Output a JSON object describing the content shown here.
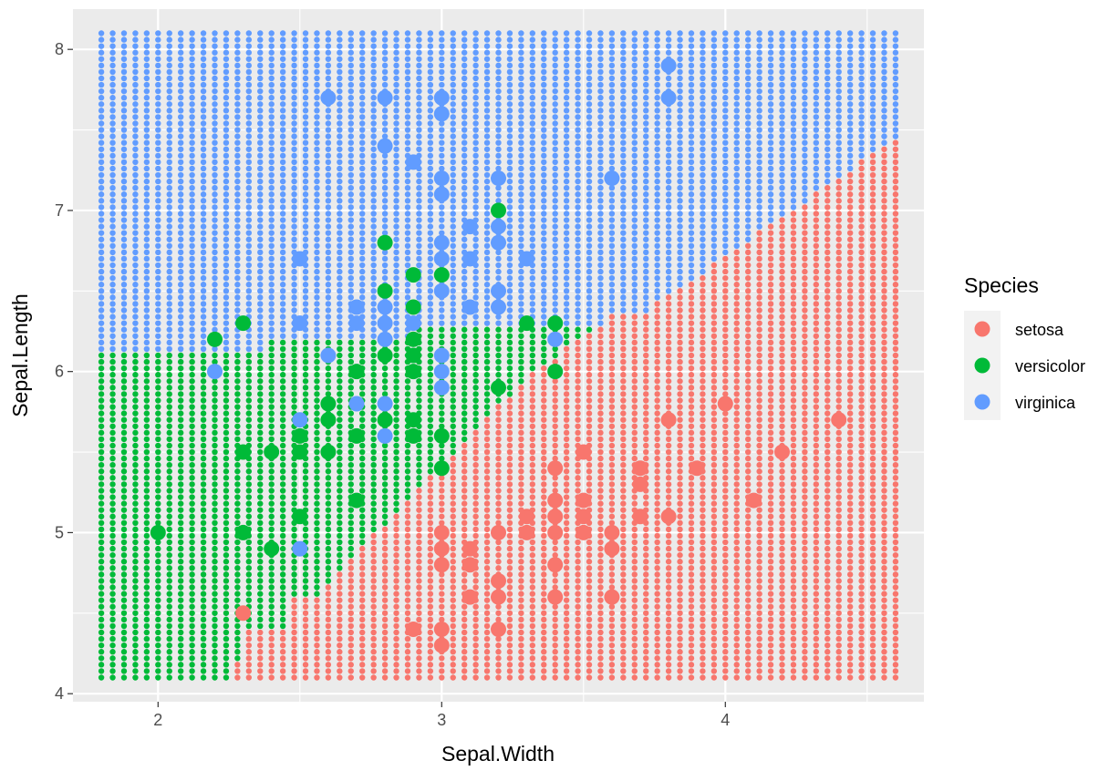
{
  "chart_data": {
    "type": "scatter",
    "xlabel": "Sepal.Width",
    "ylabel": "Sepal.Length",
    "xlim": [
      1.7,
      4.7
    ],
    "ylim": [
      3.95,
      8.25
    ],
    "x_ticks": [
      2,
      3,
      4
    ],
    "y_ticks": [
      4,
      5,
      6,
      7,
      8
    ],
    "grid": true,
    "legend": {
      "title": "Species",
      "placement": "right"
    },
    "colors": {
      "setosa": "#F8766D",
      "versicolor": "#00BA38",
      "virginica": "#619CFF"
    },
    "background": {
      "description_type": "decision-region grid",
      "x_range": [
        1.8,
        4.6
      ],
      "y_range": [
        4.1,
        8.1
      ],
      "x_step": 0.04,
      "y_step": 0.04
    },
    "series": [
      {
        "name": "setosa",
        "points": [
          [
            2.3,
            4.5
          ],
          [
            2.9,
            4.4
          ],
          [
            3.0,
            4.4
          ],
          [
            3.0,
            4.3
          ],
          [
            3.1,
            4.6
          ],
          [
            3.1,
            4.8
          ],
          [
            3.1,
            4.9
          ],
          [
            3.0,
            5.0
          ],
          [
            3.0,
            4.9
          ],
          [
            3.0,
            4.8
          ],
          [
            3.2,
            4.7
          ],
          [
            3.2,
            4.6
          ],
          [
            3.2,
            4.4
          ],
          [
            3.2,
            5.0
          ],
          [
            3.3,
            5.0
          ],
          [
            3.3,
            5.1
          ],
          [
            3.4,
            4.6
          ],
          [
            3.4,
            4.8
          ],
          [
            3.4,
            5.0
          ],
          [
            3.4,
            5.1
          ],
          [
            3.4,
            5.2
          ],
          [
            3.4,
            5.4
          ],
          [
            3.5,
            5.0
          ],
          [
            3.5,
            5.1
          ],
          [
            3.5,
            5.2
          ],
          [
            3.5,
            5.5
          ],
          [
            3.6,
            4.6
          ],
          [
            3.6,
            4.9
          ],
          [
            3.6,
            5.0
          ],
          [
            3.7,
            5.1
          ],
          [
            3.7,
            5.3
          ],
          [
            3.7,
            5.4
          ],
          [
            3.8,
            5.1
          ],
          [
            3.8,
            5.7
          ],
          [
            3.9,
            5.4
          ],
          [
            4.0,
            5.8
          ],
          [
            4.1,
            5.2
          ],
          [
            4.2,
            5.5
          ],
          [
            4.4,
            5.7
          ]
        ]
      },
      {
        "name": "versicolor",
        "points": [
          [
            2.0,
            5.0
          ],
          [
            2.2,
            6.2
          ],
          [
            2.3,
            5.0
          ],
          [
            2.3,
            5.5
          ],
          [
            2.3,
            6.3
          ],
          [
            2.4,
            4.9
          ],
          [
            2.4,
            5.5
          ],
          [
            2.5,
            5.1
          ],
          [
            2.5,
            5.5
          ],
          [
            2.5,
            5.6
          ],
          [
            2.6,
            5.5
          ],
          [
            2.6,
            5.7
          ],
          [
            2.6,
            5.8
          ],
          [
            2.7,
            5.2
          ],
          [
            2.7,
            5.6
          ],
          [
            2.7,
            6.0
          ],
          [
            2.8,
            5.7
          ],
          [
            2.8,
            6.1
          ],
          [
            2.8,
            6.5
          ],
          [
            2.8,
            6.8
          ],
          [
            2.9,
            5.6
          ],
          [
            2.9,
            5.7
          ],
          [
            2.9,
            6.0
          ],
          [
            2.9,
            6.1
          ],
          [
            2.9,
            6.2
          ],
          [
            2.9,
            6.4
          ],
          [
            2.9,
            6.6
          ],
          [
            3.0,
            5.4
          ],
          [
            3.0,
            5.6
          ],
          [
            3.0,
            6.6
          ],
          [
            3.2,
            5.9
          ],
          [
            3.2,
            7.0
          ],
          [
            3.3,
            6.3
          ],
          [
            3.4,
            6.0
          ],
          [
            3.4,
            6.3
          ]
        ]
      },
      {
        "name": "virginica",
        "points": [
          [
            2.2,
            6.0
          ],
          [
            2.5,
            4.9
          ],
          [
            2.5,
            5.7
          ],
          [
            2.5,
            6.3
          ],
          [
            2.5,
            6.7
          ],
          [
            2.6,
            6.1
          ],
          [
            2.6,
            7.7
          ],
          [
            2.7,
            5.8
          ],
          [
            2.7,
            6.3
          ],
          [
            2.7,
            6.4
          ],
          [
            2.8,
            5.6
          ],
          [
            2.8,
            5.8
          ],
          [
            2.8,
            6.2
          ],
          [
            2.8,
            6.3
          ],
          [
            2.8,
            6.4
          ],
          [
            2.8,
            7.4
          ],
          [
            2.8,
            7.7
          ],
          [
            2.9,
            6.3
          ],
          [
            2.9,
            7.3
          ],
          [
            3.0,
            5.9
          ],
          [
            3.0,
            6.0
          ],
          [
            3.0,
            6.1
          ],
          [
            3.0,
            6.5
          ],
          [
            3.0,
            6.7
          ],
          [
            3.0,
            6.8
          ],
          [
            3.0,
            7.1
          ],
          [
            3.0,
            7.2
          ],
          [
            3.0,
            7.6
          ],
          [
            3.0,
            7.7
          ],
          [
            3.1,
            6.4
          ],
          [
            3.1,
            6.7
          ],
          [
            3.1,
            6.9
          ],
          [
            3.2,
            6.4
          ],
          [
            3.2,
            6.5
          ],
          [
            3.2,
            6.8
          ],
          [
            3.2,
            6.9
          ],
          [
            3.2,
            7.2
          ],
          [
            3.3,
            6.7
          ],
          [
            3.4,
            6.2
          ],
          [
            3.6,
            7.2
          ],
          [
            3.8,
            7.7
          ],
          [
            3.8,
            7.9
          ]
        ]
      }
    ]
  }
}
